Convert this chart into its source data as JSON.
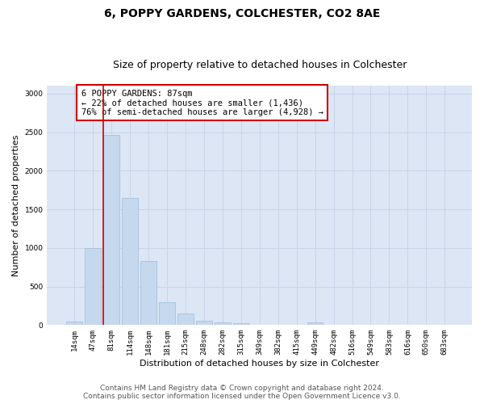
{
  "title": "6, POPPY GARDENS, COLCHESTER, CO2 8AE",
  "subtitle": "Size of property relative to detached houses in Colchester",
  "xlabel": "Distribution of detached houses by size in Colchester",
  "ylabel": "Number of detached properties",
  "categories": [
    "14sqm",
    "47sqm",
    "81sqm",
    "114sqm",
    "148sqm",
    "181sqm",
    "215sqm",
    "248sqm",
    "282sqm",
    "315sqm",
    "349sqm",
    "382sqm",
    "415sqm",
    "449sqm",
    "482sqm",
    "516sqm",
    "549sqm",
    "583sqm",
    "616sqm",
    "650sqm",
    "683sqm"
  ],
  "values": [
    50,
    1000,
    2460,
    1650,
    830,
    300,
    150,
    55,
    35,
    25,
    0,
    0,
    0,
    30,
    0,
    0,
    0,
    0,
    0,
    0,
    0
  ],
  "bar_color": "#c5d8ee",
  "bar_edge_color": "#9bbcda",
  "vline_color": "#cc0000",
  "annotation_text": "6 POPPY GARDENS: 87sqm\n← 22% of detached houses are smaller (1,436)\n76% of semi-detached houses are larger (4,928) →",
  "annotation_box_color": "#ffffff",
  "annotation_box_edge_color": "#cc0000",
  "ylim": [
    0,
    3100
  ],
  "yticks": [
    0,
    500,
    1000,
    1500,
    2000,
    2500,
    3000
  ],
  "grid_color": "#c8d4e8",
  "background_color": "#dce6f5",
  "footer_line1": "Contains HM Land Registry data © Crown copyright and database right 2024.",
  "footer_line2": "Contains public sector information licensed under the Open Government Licence v3.0.",
  "title_fontsize": 10,
  "subtitle_fontsize": 9,
  "xlabel_fontsize": 8,
  "ylabel_fontsize": 8,
  "tick_fontsize": 6.5,
  "annotation_fontsize": 7.5,
  "footer_fontsize": 6.5
}
